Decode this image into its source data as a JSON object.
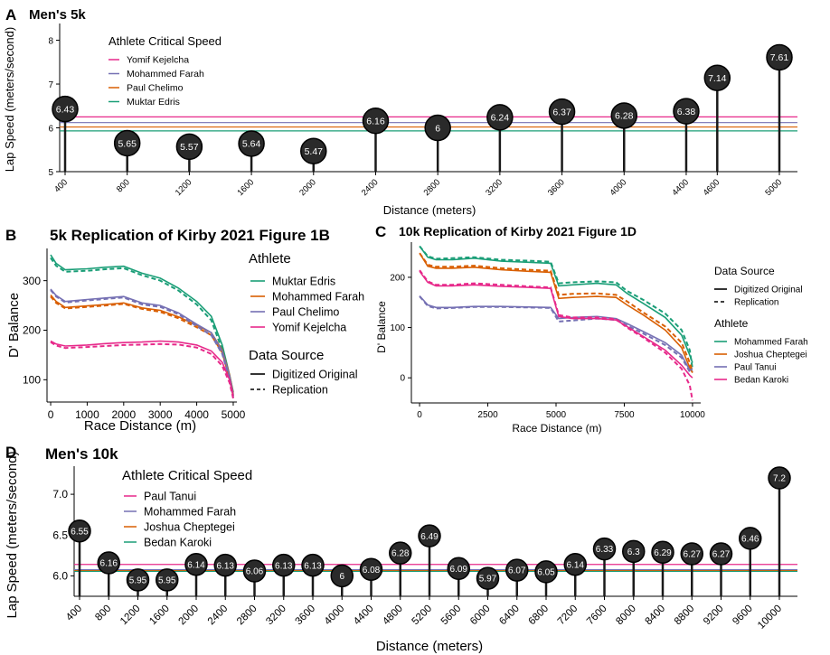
{
  "colors": {
    "edris": "#1a9e77",
    "farah": "#d95f02",
    "chelimo": "#7570b3",
    "kejelcha": "#e7298a",
    "lollipop": "#1a1a1a",
    "axis": "#000000"
  },
  "chart_data": [
    {
      "id": "A",
      "type": "lollipop",
      "letter": "A",
      "title": "Men's 5k",
      "xlabel": "Distance (meters)",
      "ylabel": "Lap Speed (meters/second)",
      "ylim": [
        5,
        8.3
      ],
      "yticks": [
        5,
        6,
        7,
        8
      ],
      "x": [
        400,
        800,
        1200,
        1600,
        2000,
        2400,
        2800,
        3200,
        3600,
        4000,
        4400,
        4600,
        5000
      ],
      "values": [
        6.43,
        5.65,
        5.57,
        5.64,
        5.47,
        6.16,
        6,
        6.24,
        6.37,
        6.28,
        6.38,
        7.14,
        7.61
      ],
      "value_labels": [
        "6.43",
        "5.65",
        "5.57",
        "5.64",
        "5.47",
        "6.16",
        "6",
        "6.24",
        "6.37",
        "6.28",
        "6.38",
        "7.14",
        "7.61"
      ],
      "legend_title": "Athlete Critical Speed",
      "reference_lines": [
        {
          "name": "Yomif Kejelcha",
          "value": 6.25,
          "color": "#e7298a"
        },
        {
          "name": "Mohammed Farah",
          "value": 6.12,
          "color": "#7570b3"
        },
        {
          "name": "Paul Chelimo",
          "value": 6.02,
          "color": "#d95f02"
        },
        {
          "name": "Muktar Edris",
          "value": 5.93,
          "color": "#1a9e77"
        }
      ]
    },
    {
      "id": "B",
      "type": "line",
      "letter": "B",
      "title": "5k Replication of Kirby 2021 Figure 1B",
      "xlabel": "Race Distance (m)",
      "ylabel": "D' Balance",
      "xlim": [
        -100,
        5100
      ],
      "ylim": [
        55,
        365
      ],
      "xticks": [
        0,
        1000,
        2000,
        3000,
        4000,
        5000
      ],
      "yticks": [
        100,
        200,
        300
      ],
      "legend_athlete_title": "Athlete",
      "legend_source_title": "Data Source",
      "sources": [
        "Digitized Original",
        "Replication"
      ],
      "series": [
        {
          "name": "Muktar Edris",
          "color": "#1a9e77",
          "x": [
            0,
            150,
            400,
            1000,
            1500,
            2000,
            2500,
            3000,
            3500,
            4000,
            4400,
            4700,
            4900,
            5000
          ],
          "original": [
            352,
            335,
            322,
            324,
            327,
            329,
            315,
            305,
            285,
            258,
            228,
            170,
            110,
            75
          ],
          "replication": [
            346,
            330,
            318,
            320,
            323,
            325,
            311,
            300,
            280,
            252,
            220,
            160,
            100,
            68
          ]
        },
        {
          "name": "Mohammed Farah",
          "color": "#d95f02",
          "x": [
            0,
            150,
            400,
            1000,
            1500,
            2000,
            2500,
            3000,
            3500,
            4000,
            4400,
            4700,
            4900,
            5000
          ],
          "original": [
            271,
            258,
            246,
            249,
            252,
            255,
            245,
            240,
            227,
            210,
            195,
            160,
            110,
            72
          ],
          "replication": [
            268,
            255,
            244,
            247,
            250,
            253,
            243,
            237,
            224,
            206,
            190,
            155,
            104,
            66
          ]
        },
        {
          "name": "Paul Chelimo",
          "color": "#7570b3",
          "x": [
            0,
            150,
            400,
            1000,
            1500,
            2000,
            2500,
            3000,
            3500,
            4000,
            4400,
            4700,
            4900,
            5000
          ],
          "original": [
            283,
            270,
            258,
            262,
            265,
            268,
            255,
            250,
            235,
            212,
            195,
            158,
            108,
            70
          ],
          "replication": [
            281,
            268,
            256,
            260,
            263,
            266,
            252,
            247,
            232,
            208,
            190,
            152,
            102,
            64
          ]
        },
        {
          "name": "Yomif Kejelcha",
          "color": "#e7298a",
          "x": [
            0,
            150,
            400,
            1000,
            1500,
            2000,
            2500,
            3000,
            3500,
            4000,
            4400,
            4700,
            4900,
            5000
          ],
          "original": [
            178,
            172,
            168,
            170,
            173,
            175,
            176,
            178,
            176,
            170,
            158,
            135,
            100,
            68
          ],
          "replication": [
            176,
            169,
            164,
            166,
            168,
            170,
            171,
            172,
            171,
            165,
            152,
            128,
            94,
            62
          ]
        }
      ]
    },
    {
      "id": "C",
      "type": "line",
      "letter": "C",
      "title": "10k Replication of Kirby 2021 Figure 1D",
      "xlabel": "Race Distance (m)",
      "ylabel": "D' Balance",
      "xlim": [
        -300,
        10300
      ],
      "ylim": [
        -50,
        270
      ],
      "xticks": [
        0,
        2500,
        5000,
        7500,
        10000
      ],
      "yticks": [
        0,
        100,
        200
      ],
      "legend_source_title": "Data Source",
      "legend_athlete_title": "Athlete",
      "sources": [
        "Digitized Original",
        "Replication"
      ],
      "series": [
        {
          "name": "Mohammed Farah",
          "color": "#1a9e77",
          "x": [
            0,
            300,
            600,
            1200,
            2000,
            3000,
            4000,
            4800,
            5100,
            5600,
            6500,
            7200,
            7600,
            8200,
            9000,
            9600,
            9900,
            10000
          ],
          "original": [
            262,
            240,
            235,
            235,
            238,
            232,
            230,
            228,
            183,
            185,
            188,
            185,
            168,
            148,
            120,
            85,
            45,
            30
          ],
          "replication": [
            262,
            242,
            237,
            238,
            240,
            235,
            233,
            231,
            188,
            190,
            192,
            190,
            173,
            155,
            128,
            95,
            55,
            18
          ]
        },
        {
          "name": "Joshua Cheptegei",
          "color": "#d95f02",
          "x": [
            0,
            300,
            600,
            1200,
            2000,
            3000,
            4000,
            4800,
            5100,
            5600,
            6500,
            7200,
            7600,
            8200,
            9000,
            9600,
            9900,
            10000
          ],
          "original": [
            248,
            222,
            218,
            218,
            220,
            215,
            212,
            210,
            158,
            160,
            162,
            160,
            145,
            125,
            95,
            60,
            20,
            10
          ],
          "replication": [
            248,
            225,
            221,
            221,
            223,
            218,
            215,
            213,
            165,
            167,
            168,
            165,
            152,
            130,
            102,
            70,
            30,
            12
          ]
        },
        {
          "name": "Paul Tanui",
          "color": "#7570b3",
          "x": [
            0,
            300,
            600,
            1200,
            2000,
            3000,
            4000,
            4800,
            5100,
            5600,
            6500,
            7200,
            7600,
            8200,
            9000,
            9600,
            9900,
            10000
          ],
          "original": [
            163,
            145,
            140,
            140,
            142,
            142,
            141,
            140,
            118,
            120,
            122,
            118,
            108,
            92,
            70,
            45,
            15,
            18
          ],
          "replication": [
            162,
            143,
            138,
            139,
            141,
            141,
            140,
            139,
            112,
            114,
            118,
            115,
            104,
            88,
            65,
            40,
            12,
            15
          ]
        },
        {
          "name": "Bedan Karoki",
          "color": "#e7298a",
          "x": [
            0,
            300,
            600,
            1200,
            2000,
            3000,
            4000,
            4800,
            5100,
            5600,
            6500,
            7200,
            7600,
            8200,
            9000,
            9600,
            9900,
            10000
          ],
          "original": [
            212,
            190,
            183,
            183,
            185,
            182,
            180,
            178,
            122,
            118,
            118,
            115,
            102,
            82,
            55,
            25,
            5,
            0
          ],
          "replication": [
            214,
            192,
            185,
            185,
            188,
            185,
            182,
            180,
            125,
            120,
            120,
            117,
            100,
            80,
            50,
            18,
            -15,
            -45
          ]
        }
      ]
    },
    {
      "id": "D",
      "type": "lollipop",
      "letter": "D",
      "title": "Men's 10k",
      "xlabel": "Distance (meters)",
      "ylabel": "Lap Speed (meters/second)",
      "ylim": [
        5.75,
        7.3
      ],
      "yticks": [
        6.0,
        6.5,
        7.0
      ],
      "ytick_labels": [
        "6.0",
        "6.5",
        "7.0"
      ],
      "x": [
        400,
        800,
        1200,
        1600,
        2000,
        2400,
        2800,
        3200,
        3600,
        4000,
        4400,
        4800,
        5200,
        5600,
        6000,
        6400,
        6800,
        7200,
        7600,
        8000,
        8400,
        8800,
        9200,
        9600,
        10000
      ],
      "values": [
        6.55,
        6.16,
        5.95,
        5.95,
        6.14,
        6.13,
        6.06,
        6.13,
        6.13,
        6,
        6.08,
        6.28,
        6.49,
        6.09,
        5.97,
        6.07,
        6.05,
        6.14,
        6.33,
        6.3,
        6.29,
        6.27,
        6.27,
        6.46,
        7.2
      ],
      "value_labels": [
        "6.55",
        "6.16",
        "5.95",
        "5.95",
        "6.14",
        "6.13",
        "6.06",
        "6.13",
        "6.13",
        "6",
        "6.08",
        "6.28",
        "6.49",
        "6.09",
        "5.97",
        "6.07",
        "6.05",
        "6.14",
        "6.33",
        "6.3",
        "6.29",
        "6.27",
        "6.27",
        "6.46",
        "7.2"
      ],
      "legend_title": "Athlete Critical Speed",
      "reference_lines": [
        {
          "name": "Paul Tanui",
          "value": 6.14,
          "color": "#e7298a"
        },
        {
          "name": "Mohammed Farah",
          "value": 6.075,
          "color": "#7570b3"
        },
        {
          "name": "Joshua Cheptegei",
          "value": 6.065,
          "color": "#d95f02"
        },
        {
          "name": "Bedan Karoki",
          "value": 6.055,
          "color": "#1a9e77"
        }
      ]
    }
  ]
}
